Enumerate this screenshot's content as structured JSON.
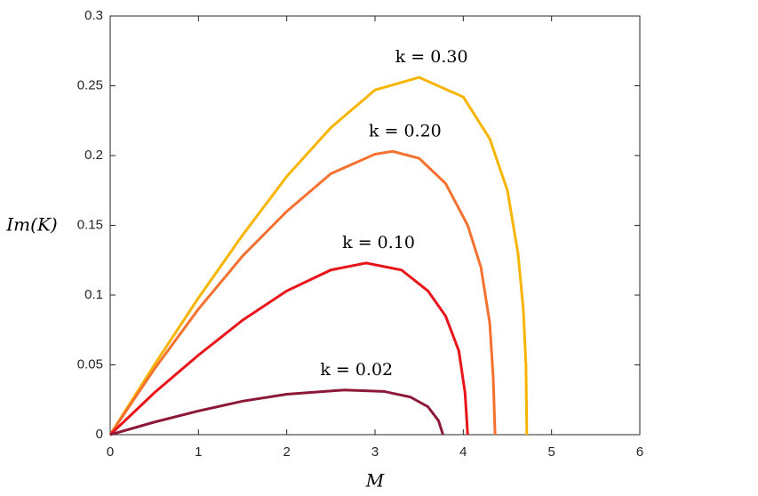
{
  "chart_data": {
    "type": "line",
    "x_label": "M",
    "y_label": "Im(K)",
    "xlim": [
      0,
      6
    ],
    "ylim": [
      0,
      0.3
    ],
    "xticks": [
      0,
      1,
      2,
      3,
      4,
      5,
      6
    ],
    "yticks": [
      0,
      0.05,
      0.1,
      0.15,
      0.2,
      0.25,
      0.3
    ],
    "grid": false,
    "series": [
      {
        "name": "k = 0.30",
        "color": "#f7b500",
        "x": [
          0,
          0.5,
          1,
          1.5,
          2,
          2.5,
          3,
          3.5,
          4,
          4.3,
          4.5,
          4.62,
          4.68,
          4.71,
          4.72
        ],
        "values": [
          0,
          0.05,
          0.098,
          0.143,
          0.185,
          0.22,
          0.247,
          0.256,
          0.242,
          0.212,
          0.175,
          0.13,
          0.09,
          0.05,
          0
        ]
      },
      {
        "name": "k = 0.20",
        "color": "#f5712f",
        "x": [
          0,
          0.5,
          1,
          1.5,
          2,
          2.5,
          3,
          3.2,
          3.5,
          3.8,
          4.05,
          4.2,
          4.3,
          4.34,
          4.36
        ],
        "values": [
          0,
          0.047,
          0.09,
          0.128,
          0.16,
          0.187,
          0.201,
          0.203,
          0.198,
          0.18,
          0.15,
          0.12,
          0.08,
          0.04,
          0
        ]
      },
      {
        "name": "k = 0.10",
        "color": "#e8141a",
        "x": [
          0,
          0.5,
          1,
          1.5,
          2,
          2.5,
          2.9,
          3.3,
          3.6,
          3.8,
          3.95,
          4.02,
          4.05
        ],
        "values": [
          0,
          0.03,
          0.057,
          0.082,
          0.103,
          0.118,
          0.123,
          0.118,
          0.103,
          0.085,
          0.06,
          0.03,
          0
        ]
      },
      {
        "name": "k = 0.02",
        "color": "#8c1737",
        "x": [
          0,
          0.5,
          1,
          1.5,
          2,
          2.65,
          3.1,
          3.4,
          3.6,
          3.72,
          3.77
        ],
        "values": [
          0,
          0.009,
          0.017,
          0.024,
          0.029,
          0.032,
          0.031,
          0.027,
          0.02,
          0.01,
          0
        ]
      }
    ]
  }
}
